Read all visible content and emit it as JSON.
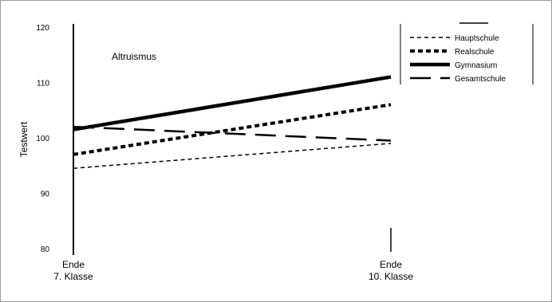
{
  "chart_data": {
    "type": "line",
    "title": "",
    "annotation": "Altruismus",
    "ylabel": "Testwert",
    "xlabel": "",
    "ylim": [
      80,
      120
    ],
    "yticks": [
      80,
      90,
      100,
      110,
      120
    ],
    "categories": [
      "Ende 7. Klasse",
      "Ende 10. Klasse"
    ],
    "category_lines": [
      [
        "Ende",
        "7. Klasse"
      ],
      [
        "Ende",
        "10. Klasse"
      ]
    ],
    "series": [
      {
        "name": "Hauptschule",
        "values": [
          94.5,
          99
        ],
        "style": "short-dash-thin"
      },
      {
        "name": "Realschule",
        "values": [
          97,
          106
        ],
        "style": "dotted-thick"
      },
      {
        "name": "Gymnasium",
        "values": [
          101.5,
          111
        ],
        "style": "solid-thick"
      },
      {
        "name": "Gesamtschule",
        "values": [
          102,
          99.5
        ],
        "style": "long-dash"
      }
    ],
    "legend_position": "top-right",
    "grid": false
  },
  "colors": {
    "line": "#000000",
    "frame": "#9a9a9a"
  }
}
